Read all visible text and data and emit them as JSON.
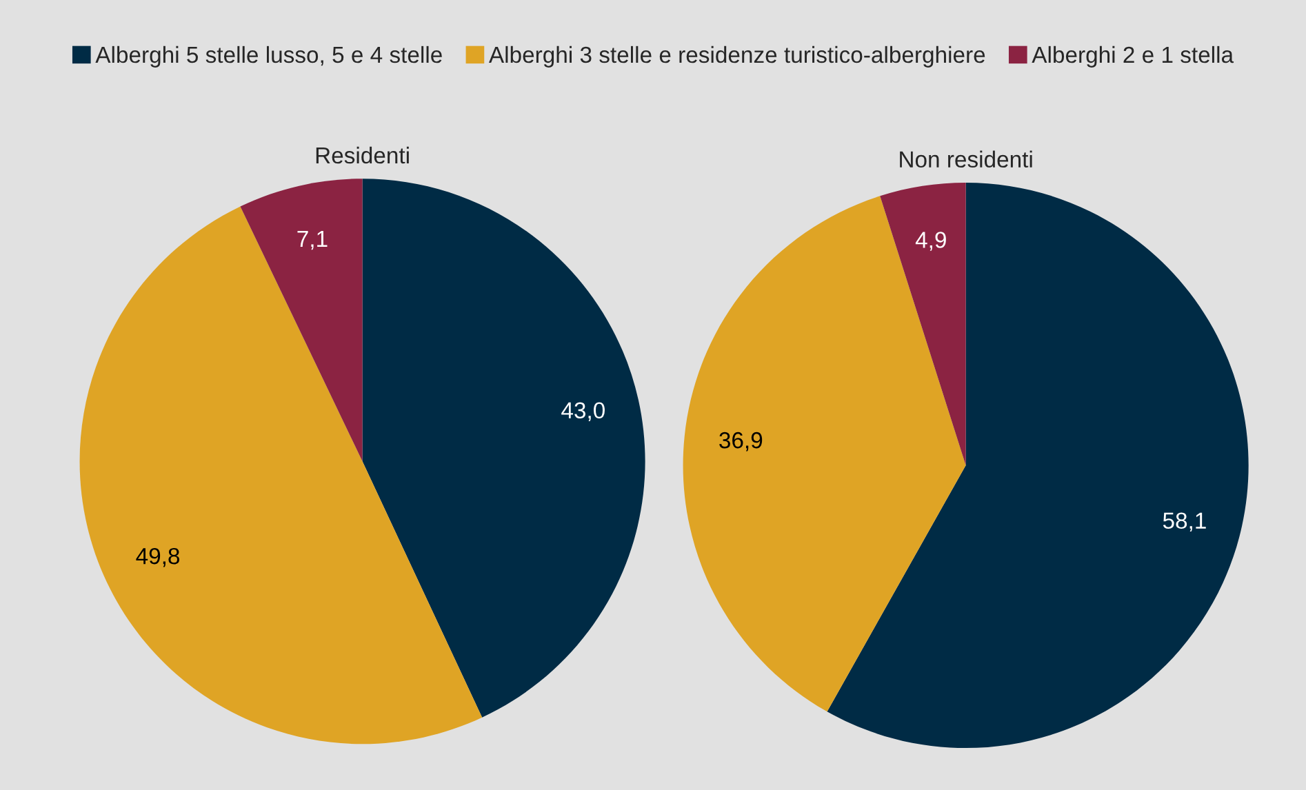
{
  "chart_data": [
    {
      "type": "pie",
      "title": "Residenti",
      "categories": [
        "Alberghi 5 stelle lusso, 5 e 4 stelle",
        "Alberghi 3 stelle e residenze turistico-alberghiere",
        "Alberghi 2 e 1 stella"
      ],
      "values": [
        43.0,
        49.8,
        7.1
      ],
      "value_labels": [
        "43,0",
        "49,8",
        "7,1"
      ],
      "colors": [
        "#002b45",
        "#dfa425",
        "#8b2342"
      ],
      "legend": "top"
    },
    {
      "type": "pie",
      "title": "Non residenti",
      "categories": [
        null,
        null,
        null
      ],
      "values": [
        58.1,
        36.9,
        4.9
      ],
      "value_labels": [
        "58,1",
        "36,9",
        "4,9"
      ],
      "colors": [
        "#002b45",
        "#dfa425",
        "#8b2342"
      ]
    }
  ]
}
